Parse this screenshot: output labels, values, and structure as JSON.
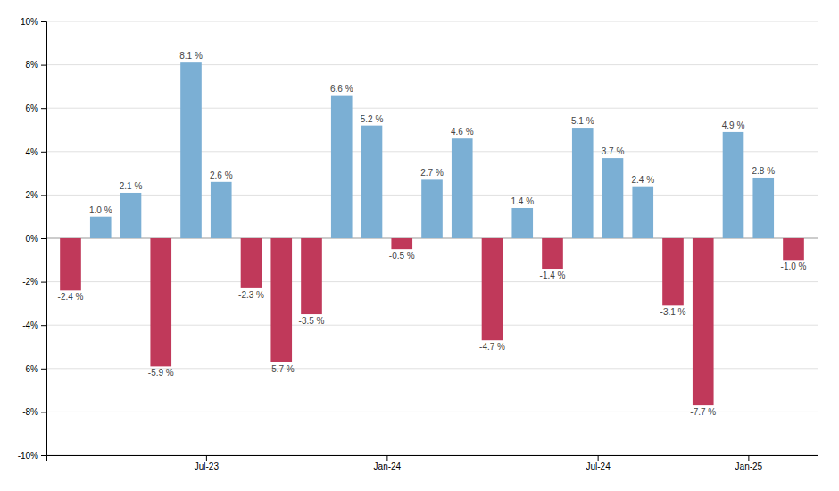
{
  "chart_data": {
    "type": "bar",
    "x": [
      0,
      1,
      2,
      3,
      4,
      5,
      6,
      7,
      8,
      9,
      10,
      11,
      12,
      13,
      14,
      15,
      16,
      17,
      18,
      19,
      20,
      21,
      22,
      23,
      24
    ],
    "values": [
      -2.4,
      1.0,
      2.1,
      -5.9,
      8.1,
      2.6,
      -2.3,
      -5.7,
      -3.5,
      6.6,
      5.2,
      -0.5,
      2.7,
      4.6,
      -4.7,
      1.4,
      -1.4,
      5.1,
      3.7,
      2.4,
      -3.1,
      -7.7,
      4.9,
      2.8,
      -1.0
    ],
    "value_labels": [
      "-2.4 %",
      "1.0 %",
      "2.1 %",
      "-5.9 %",
      "8.1 %",
      "2.6 %",
      "-2.3 %",
      "-5.7 %",
      "-3.5 %",
      "6.6 %",
      "5.2 %",
      "-0.5 %",
      "2.7 %",
      "4.6 %",
      "-4.7 %",
      "1.4 %",
      "-1.4 %",
      "5.1 %",
      "3.7 %",
      "2.4 %",
      "-3.1 %",
      "-7.7 %",
      "4.9 %",
      "2.8 %",
      "-1.0 %"
    ],
    "colors": [
      "#c0395a",
      "#7bafd4",
      "#7bafd4",
      "#c0395a",
      "#7bafd4",
      "#7bafd4",
      "#c0395a",
      "#c0395a",
      "#c0395a",
      "#7bafd4",
      "#7bafd4",
      "#c0395a",
      "#7bafd4",
      "#7bafd4",
      "#c0395a",
      "#7bafd4",
      "#c0395a",
      "#7bafd4",
      "#7bafd4",
      "#7bafd4",
      "#c0395a",
      "#c0395a",
      "#7bafd4",
      "#7bafd4",
      "#c0395a"
    ],
    "xlim": [
      -0.8,
      24.8
    ],
    "xticks": [
      {
        "value": 4.5,
        "label": "Jul-23"
      },
      {
        "value": 10.5,
        "label": "Jan-24"
      },
      {
        "value": 17.5,
        "label": "Jul-24"
      },
      {
        "value": 22.5,
        "label": "Jan-25"
      }
    ],
    "ylim": [
      -10,
      10
    ],
    "yticks": [
      {
        "value": -10,
        "label": "-10%"
      },
      {
        "value": -8,
        "label": "-8%"
      },
      {
        "value": -6,
        "label": "-6%"
      },
      {
        "value": -4,
        "label": "-4%"
      },
      {
        "value": -2,
        "label": "-2%"
      },
      {
        "value": 0,
        "label": "0%"
      },
      {
        "value": 2,
        "label": "2%"
      },
      {
        "value": 4,
        "label": "4%"
      },
      {
        "value": 6,
        "label": "6%"
      },
      {
        "value": 8,
        "label": "8%"
      },
      {
        "value": 10,
        "label": "10%"
      }
    ],
    "grid": true,
    "data_labels": true
  }
}
